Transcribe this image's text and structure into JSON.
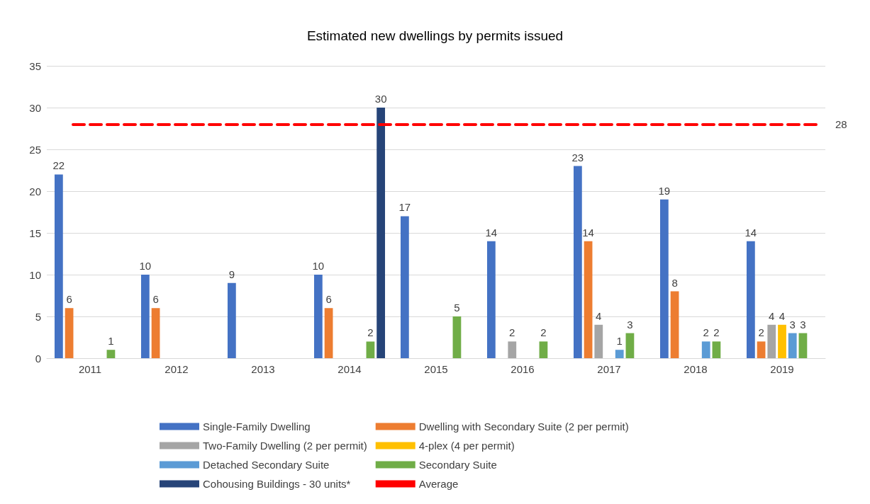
{
  "chart_data": {
    "type": "bar",
    "title": "Estimated new dwellings by permits issued",
    "categories": [
      "2011",
      "2012",
      "2013",
      "2014",
      "2015",
      "2016",
      "2017",
      "2018",
      "2019"
    ],
    "series": [
      {
        "name": "Single-Family Dwelling",
        "color": "#4472c4",
        "values": [
          22,
          10,
          9,
          10,
          17,
          14,
          23,
          19,
          14
        ]
      },
      {
        "name": "Dwelling with Secondary Suite (2 per permit)",
        "color": "#ed7d31",
        "values": [
          6,
          6,
          null,
          6,
          null,
          null,
          14,
          8,
          2
        ]
      },
      {
        "name": "Two-Family Dwelling (2 per permit)",
        "color": "#a5a5a5",
        "values": [
          null,
          null,
          null,
          null,
          null,
          2,
          4,
          null,
          4
        ]
      },
      {
        "name": "4-plex (4 per permit)",
        "color": "#ffc000",
        "values": [
          null,
          null,
          null,
          null,
          null,
          null,
          null,
          null,
          4
        ]
      },
      {
        "name": "Detached Secondary Suite",
        "color": "#5b9bd5",
        "values": [
          null,
          null,
          null,
          null,
          null,
          null,
          1,
          2,
          3
        ]
      },
      {
        "name": "Secondary Suite",
        "color": "#70ad47",
        "values": [
          1,
          null,
          null,
          2,
          5,
          2,
          3,
          2,
          3
        ]
      },
      {
        "name": "Cohousing Buildings - 30 units*",
        "color": "#264478",
        "values": [
          null,
          null,
          null,
          30,
          null,
          null,
          null,
          null,
          null
        ]
      }
    ],
    "ref_lines": [
      {
        "axis": "y",
        "value": 28,
        "label": "Average",
        "color": "#ff0000",
        "line_style": "dashed"
      }
    ],
    "ylim": [
      0,
      35
    ],
    "yticks": [
      0,
      5,
      10,
      15,
      20,
      25,
      30,
      35
    ],
    "annotations": [
      "28"
    ],
    "grid": "y",
    "legend": "bottom",
    "data_labels": true
  }
}
